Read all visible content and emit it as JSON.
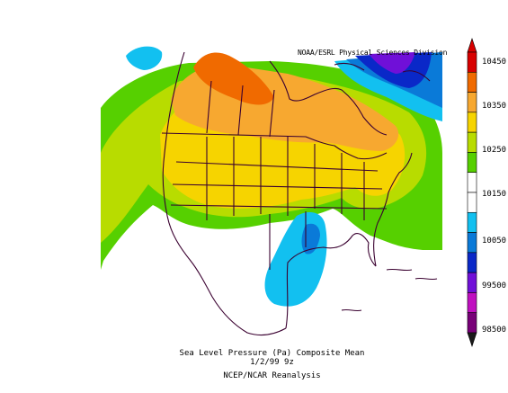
{
  "credit": "NOAA/ESRL Physical Sciences Division",
  "caption": {
    "line1": "Sea Level Pressure (Pa)   Composite Mean",
    "line2": "1/2/99 9z",
    "line3": "NCEP/NCAR Reanalysis"
  },
  "colorbar": {
    "labels": [
      "10450",
      "10350",
      "10250",
      "10150",
      "10050",
      "99500",
      "98500"
    ],
    "colors": [
      "#d80000",
      "#f06a00",
      "#f7a830",
      "#f6d400",
      "#b8dc00",
      "#56d000",
      "#ffffff",
      "#ffffff",
      "#12c0f0",
      "#0a7ad8",
      "#0a28c8",
      "#7010d8",
      "#c010c0",
      "#780078"
    ]
  },
  "map_colors": {
    "ocean_white": "#ffffff",
    "green": "#56d000",
    "lime": "#b8dc00",
    "yellow": "#f6d400",
    "light_orange": "#f7a830",
    "orange": "#f06a00",
    "cyan": "#12c0f0",
    "blue": "#0a7ad8",
    "deep_blue": "#0a28c8",
    "violet": "#7010d8",
    "outline": "#3a0030"
  }
}
